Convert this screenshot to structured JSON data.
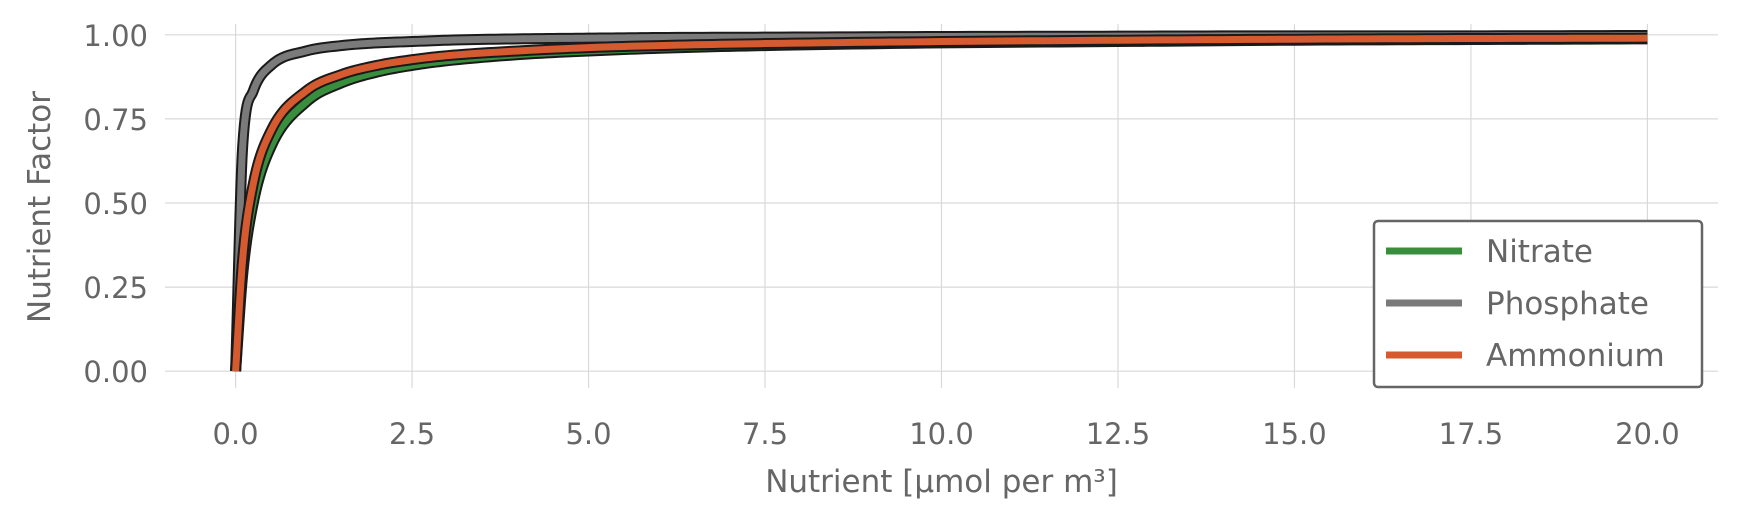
{
  "chart_data": {
    "type": "line",
    "xlabel": "Nutrient [µmol per m³]",
    "ylabel": "Nutrient Factor",
    "xlim": [
      -1.0,
      21.0
    ],
    "ylim": [
      -0.05,
      1.05
    ],
    "xticks": [
      0.0,
      2.5,
      5.0,
      7.5,
      10.0,
      12.5,
      15.0,
      17.5,
      20.0
    ],
    "xtick_labels": [
      "0.0",
      "2.5",
      "5.0",
      "7.5",
      "10.0",
      "12.5",
      "15.0",
      "17.5",
      "20.0"
    ],
    "yticks": [
      0.0,
      0.25,
      0.5,
      0.75,
      1.0
    ],
    "ytick_labels": [
      "0.00",
      "0.25",
      "0.50",
      "0.75",
      "1.00"
    ],
    "grid": true,
    "legend_position": "lower-right",
    "x": [
      0,
      0.1,
      0.25,
      0.5,
      1,
      1.5,
      2,
      2.5,
      3,
      4,
      5,
      6,
      7.5,
      10,
      12.5,
      15,
      17.5,
      20
    ],
    "series": [
      {
        "name": "Nitrate",
        "color": "#388e3c",
        "values": [
          0,
          0.286,
          0.5,
          0.667,
          0.8,
          0.857,
          0.889,
          0.909,
          0.923,
          0.941,
          0.952,
          0.96,
          0.968,
          0.976,
          0.98,
          0.984,
          0.986,
          0.988
        ]
      },
      {
        "name": "Phosphate",
        "color": "#7a7a7a",
        "values": [
          0,
          0.667,
          0.833,
          0.909,
          0.952,
          0.968,
          0.976,
          0.98,
          0.984,
          0.988,
          0.99,
          0.992,
          0.993,
          0.995,
          0.996,
          0.997,
          0.997,
          0.998
        ]
      },
      {
        "name": "Ammonium",
        "color": "#d55a2f",
        "values": [
          0,
          0.333,
          0.556,
          0.714,
          0.833,
          0.882,
          0.909,
          0.926,
          0.938,
          0.952,
          0.962,
          0.968,
          0.974,
          0.98,
          0.984,
          0.987,
          0.989,
          0.99
        ]
      }
    ]
  }
}
